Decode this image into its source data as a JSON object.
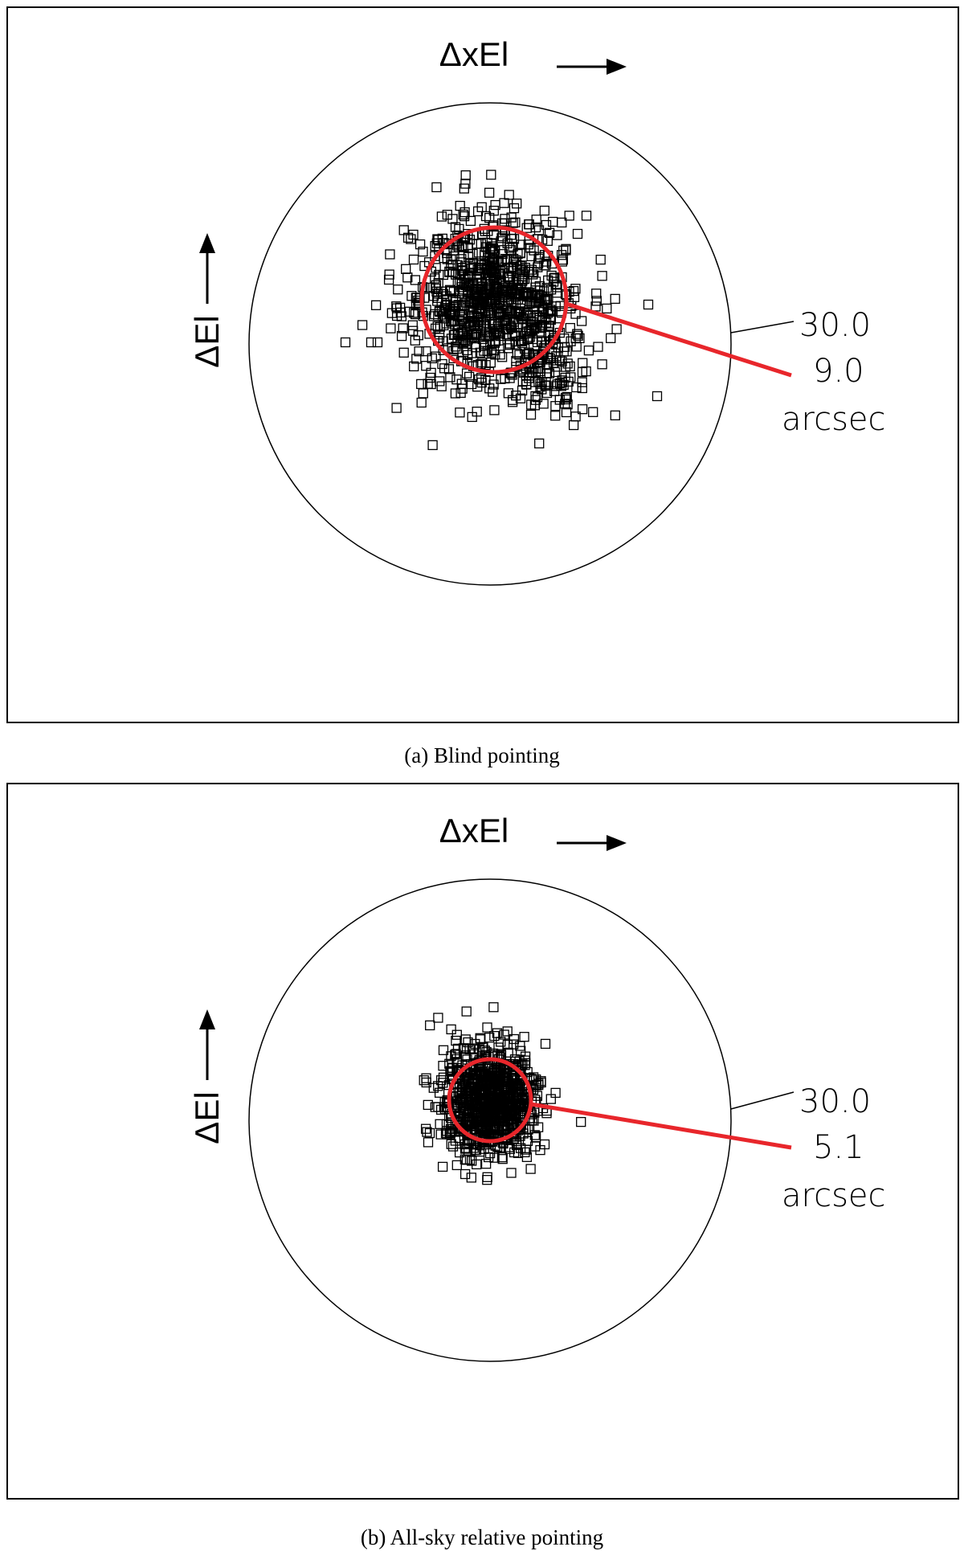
{
  "chart_data": [
    {
      "type": "scatter",
      "xlabel": "ΔxEl",
      "ylabel": "ΔEl",
      "caption": "(a) Blind pointing",
      "outer_circle_label": "30.0",
      "rms_circle_label": "9.0",
      "unit_label": "arcsec",
      "outer_radius_arcsec": 30.0,
      "rms_radius_arcsec": 9.0,
      "rms_circle_color": "#e8262b",
      "marker": "open-square",
      "cluster_center_arcsec": [
        0.5,
        5.5
      ],
      "spread_arcsec": [
        5.5,
        5.0
      ],
      "point_count": 1000,
      "outliers_arcsec": [
        [
          -9.5,
          10.5
        ],
        [
          -8.8,
          4.8
        ],
        [
          -18.0,
          0.2
        ],
        [
          -14.8,
          0.2
        ],
        [
          -14.0,
          0.2
        ],
        [
          11.5,
          -3.5
        ],
        [
          9.5,
          -8.5
        ],
        [
          20.8,
          -6.5
        ],
        [
          5.1,
          -8.8
        ],
        [
          -0.5,
          15.9
        ],
        [
          1.5,
          15.0
        ]
      ]
    },
    {
      "type": "scatter",
      "xlabel": "ΔxEl",
      "ylabel": "ΔEl",
      "caption": "(b) All-sky relative pointing",
      "outer_circle_label": "30.0",
      "rms_circle_label": "5.1",
      "unit_label": "arcsec",
      "outer_radius_arcsec": 30.0,
      "rms_radius_arcsec": 5.1,
      "rms_circle_color": "#e8262b",
      "marker": "open-square",
      "cluster_center_arcsec": [
        0.0,
        2.5
      ],
      "spread_arcsec": [
        3.0,
        3.4
      ],
      "point_count": 900,
      "outliers_arcsec": [
        [
          -7.5,
          -1.6
        ],
        [
          -5.5,
          -1.6
        ],
        [
          -5.0,
          -1.6
        ],
        [
          6.8,
          -3.0
        ],
        [
          -4.2,
          3.0
        ],
        [
          3.2,
          6.6
        ],
        [
          -0.2,
          6.4
        ]
      ]
    }
  ]
}
